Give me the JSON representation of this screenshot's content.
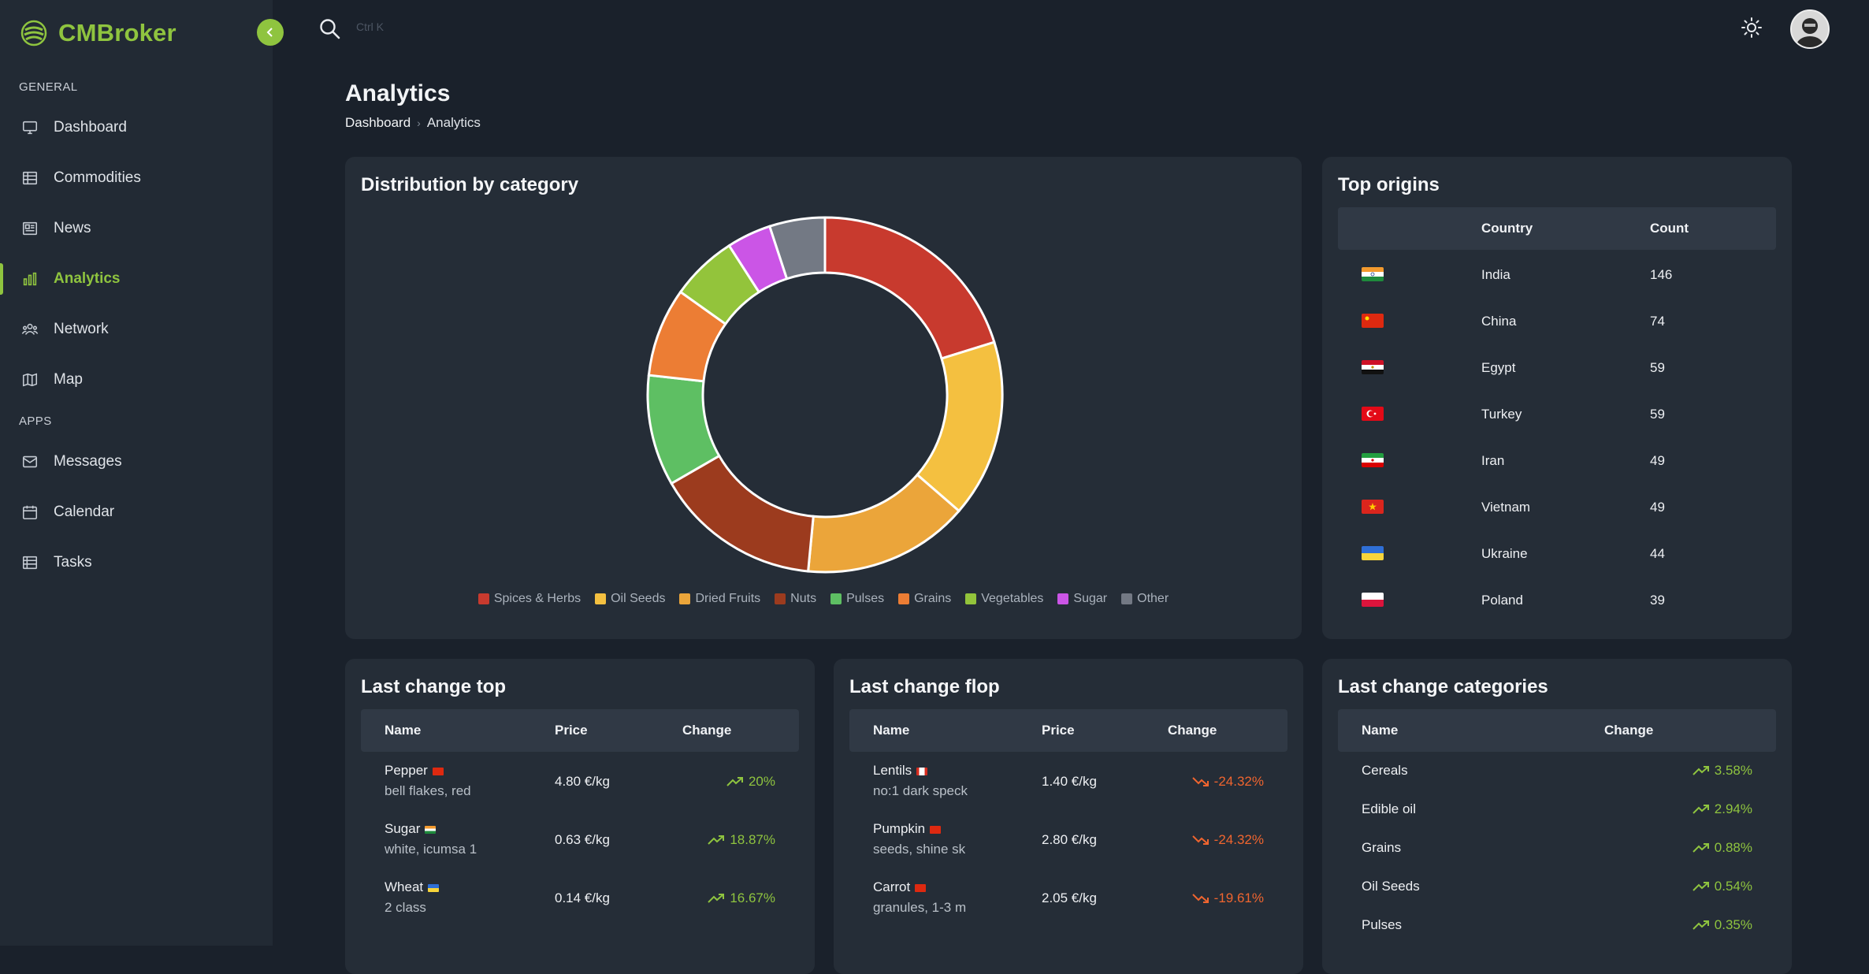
{
  "brand": {
    "name": "CMBroker"
  },
  "search": {
    "hint": "Ctrl K"
  },
  "sidebar": {
    "general_label": "GENERAL",
    "apps_label": "APPS",
    "general_items": [
      {
        "label": "Dashboard",
        "icon": "monitor-icon"
      },
      {
        "label": "Commodities",
        "icon": "table-icon"
      },
      {
        "label": "News",
        "icon": "newspaper-icon"
      },
      {
        "label": "Analytics",
        "icon": "bar-chart-icon",
        "active": true
      },
      {
        "label": "Network",
        "icon": "users-icon"
      },
      {
        "label": "Map",
        "icon": "map-icon"
      }
    ],
    "app_items": [
      {
        "label": "Messages",
        "icon": "mail-icon"
      },
      {
        "label": "Calendar",
        "icon": "calendar-icon"
      },
      {
        "label": "Tasks",
        "icon": "tasks-icon"
      }
    ]
  },
  "page": {
    "title": "Analytics",
    "breadcrumb": [
      "Dashboard",
      "Analytics"
    ]
  },
  "distribution": {
    "title": "Distribution by category",
    "chart_data": {
      "type": "pie",
      "donut": true,
      "series": [
        {
          "name": "Spices & Herbs",
          "value": 20,
          "color": "#c83a2e"
        },
        {
          "name": "Oil Seeds",
          "value": 16,
          "color": "#f4c040"
        },
        {
          "name": "Dried Fruits",
          "value": 15,
          "color": "#eba53a"
        },
        {
          "name": "Nuts",
          "value": 15,
          "color": "#9c3b1e"
        },
        {
          "name": "Pulses",
          "value": 10,
          "color": "#5ebf63"
        },
        {
          "name": "Grains",
          "value": 8,
          "color": "#ec7d34"
        },
        {
          "name": "Vegetables",
          "value": 6,
          "color": "#93c43b"
        },
        {
          "name": "Sugar",
          "value": 4,
          "color": "#cb55e6"
        },
        {
          "name": "Other",
          "value": 5,
          "color": "#737984"
        }
      ]
    }
  },
  "top_origins": {
    "title": "Top origins",
    "headers": [
      "",
      "Country",
      "Count"
    ],
    "rows": [
      {
        "flag": "india-flag",
        "country": "India",
        "count": "146"
      },
      {
        "flag": "china-flag",
        "country": "China",
        "count": "74"
      },
      {
        "flag": "egypt-flag",
        "country": "Egypt",
        "count": "59"
      },
      {
        "flag": "turkey-flag",
        "country": "Turkey",
        "count": "59"
      },
      {
        "flag": "iran-flag",
        "country": "Iran",
        "count": "49"
      },
      {
        "flag": "vietnam-flag",
        "country": "Vietnam",
        "count": "49"
      },
      {
        "flag": "ukraine-flag",
        "country": "Ukraine",
        "count": "44"
      },
      {
        "flag": "poland-flag",
        "country": "Poland",
        "count": "39"
      }
    ]
  },
  "change_top": {
    "title": "Last change top",
    "headers": [
      "Name",
      "Price",
      "Change"
    ],
    "rows": [
      {
        "name": "Pepper",
        "desc": "bell flakes, red",
        "price": "4.80 €/kg",
        "change": "20%"
      },
      {
        "name": "Sugar",
        "desc": "white, icumsa 1",
        "price": "0.63 €/kg",
        "change": "18.87%"
      },
      {
        "name": "Wheat",
        "desc": "2 class",
        "price": "0.14 €/kg",
        "change": "16.67%"
      }
    ]
  },
  "change_flop": {
    "title": "Last change flop",
    "headers": [
      "Name",
      "Price",
      "Change"
    ],
    "rows": [
      {
        "name": "Lentils",
        "desc": "no:1 dark speck",
        "price": "1.40 €/kg",
        "change": "-24.32%"
      },
      {
        "name": "Pumpkin",
        "desc": "seeds, shine sk",
        "price": "2.80 €/kg",
        "change": "-24.32%"
      },
      {
        "name": "Carrot",
        "desc": "granules, 1-3 m",
        "price": "2.05 €/kg",
        "change": "-19.61%"
      }
    ]
  },
  "change_categories": {
    "title": "Last change categories",
    "headers": [
      "Name",
      "Change"
    ],
    "rows": [
      {
        "name": "Cereals",
        "change": "3.58%"
      },
      {
        "name": "Edible oil",
        "change": "2.94%"
      },
      {
        "name": "Grains",
        "change": "0.88%"
      },
      {
        "name": "Oil Seeds",
        "change": "0.54%"
      },
      {
        "name": "Pulses",
        "change": "0.35%"
      }
    ]
  }
}
